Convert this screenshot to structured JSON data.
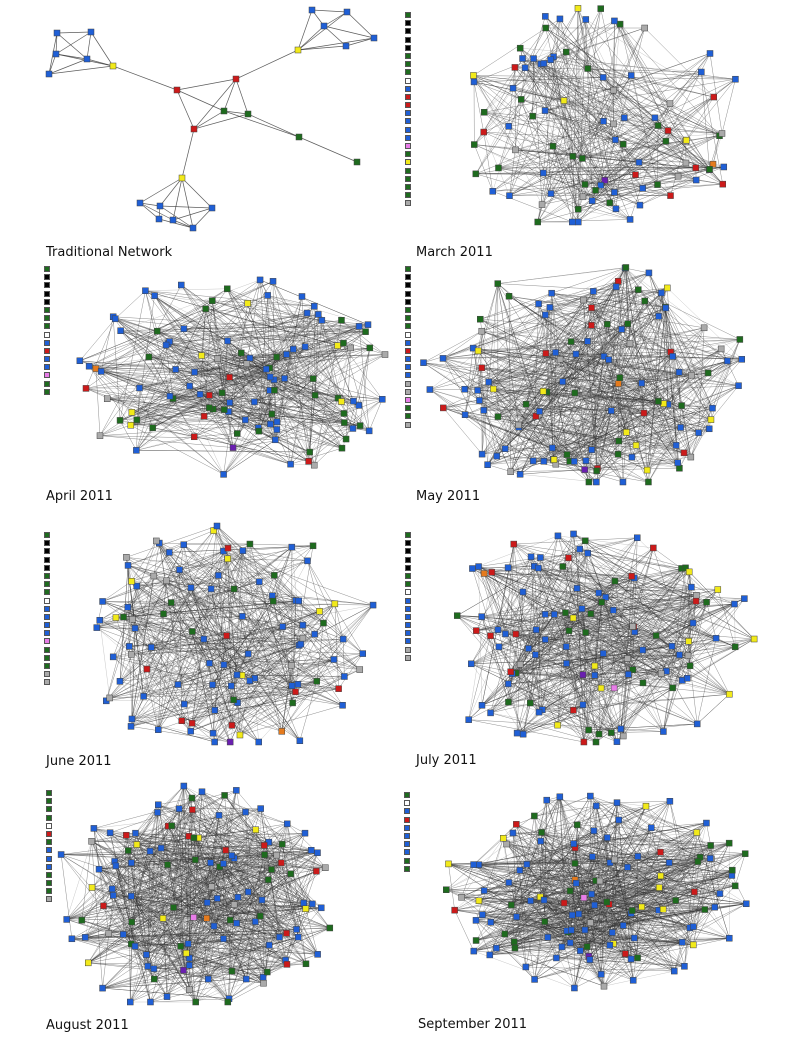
{
  "panels": [
    {
      "id": "traditional",
      "caption": "Traditional Network",
      "legend": []
    },
    {
      "id": "mar2011",
      "caption": "March 2011",
      "legend": [
        "green",
        "black",
        "black",
        "black",
        "black",
        "green",
        "green",
        "green",
        "white",
        "blue",
        "red",
        "red",
        "blue",
        "blue",
        "blue",
        "blue",
        "magenta",
        "green",
        "yellow",
        "green",
        "green",
        "green",
        "green",
        "gray"
      ]
    },
    {
      "id": "apr2011",
      "caption": "April 2011",
      "legend": [
        "green",
        "black",
        "black",
        "black",
        "black",
        "green",
        "green",
        "green",
        "white",
        "blue",
        "red",
        "blue",
        "blue",
        "magenta",
        "green",
        "green"
      ]
    },
    {
      "id": "may2011",
      "caption": "May 2011",
      "legend": [
        "green",
        "black",
        "black",
        "black",
        "black",
        "green",
        "green",
        "green",
        "white",
        "blue",
        "red",
        "blue",
        "blue",
        "blue",
        "gray",
        "gray",
        "magenta",
        "green",
        "green",
        "gray"
      ]
    },
    {
      "id": "jun2011",
      "caption": "June 2011",
      "legend": [
        "green",
        "black",
        "black",
        "black",
        "black",
        "green",
        "green",
        "green",
        "white",
        "blue",
        "blue",
        "blue",
        "blue",
        "magenta",
        "green",
        "green",
        "green",
        "gray",
        "gray"
      ]
    },
    {
      "id": "jul2011",
      "caption": "July 2011",
      "legend": [
        "green",
        "black",
        "black",
        "black",
        "black",
        "green",
        "green",
        "white",
        "blue",
        "blue",
        "blue",
        "blue",
        "blue",
        "blue",
        "gray",
        "gray"
      ]
    },
    {
      "id": "aug2011",
      "caption": "August 2011",
      "legend": [
        "green",
        "green",
        "green",
        "green",
        "white",
        "red",
        "green",
        "blue",
        "blue",
        "blue",
        "green",
        "green",
        "green",
        "gray"
      ]
    },
    {
      "id": "sep2011",
      "caption": "September 2011",
      "legend": [
        "green",
        "white",
        "blue",
        "red",
        "blue",
        "blue",
        "blue",
        "blue",
        "green",
        "green"
      ]
    }
  ],
  "colors": {
    "blue": "#1f5fd6",
    "green": "#1e6b1e",
    "red": "#cc1a1a",
    "yellow": "#f2ea1a",
    "gray": "#aaaaaa",
    "black": "#000000",
    "white": "#ffffff",
    "purple": "#6a1fb0",
    "orange": "#e57b1e",
    "magenta": "#e87de8",
    "edge": "#333333"
  }
}
